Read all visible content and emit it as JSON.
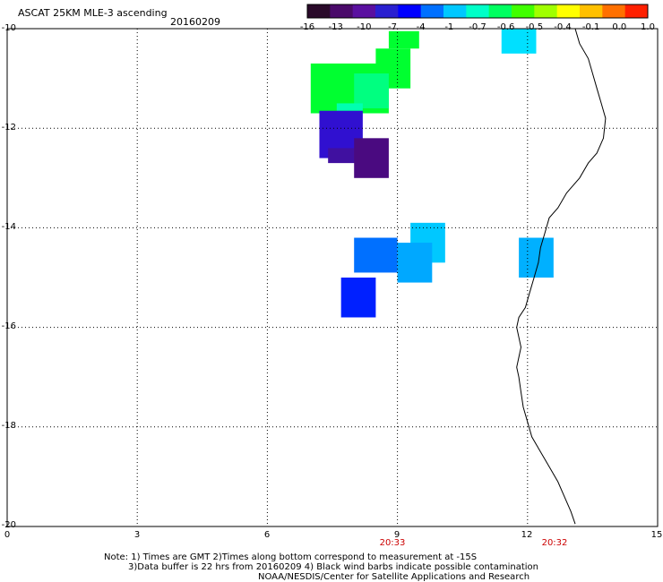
{
  "header": {
    "title": "ASCAT 25KM MLE-3 ascending",
    "date": "20160209"
  },
  "colorbar": {
    "labels": [
      "-16",
      "-13",
      "-10",
      "-7",
      "-4",
      "-1",
      "-0.7",
      "-0.6",
      "-0.5",
      "-0.4",
      "-0.1",
      "0.0",
      "1.0"
    ],
    "colors": [
      "#2a0a2a",
      "#4a0a6a",
      "#5a10a0",
      "#2a20d0",
      "#0000ff",
      "#0070ff",
      "#00c8ff",
      "#00ffc8",
      "#00ff60",
      "#40ff00",
      "#a0ff00",
      "#ffff00",
      "#ffc000",
      "#ff7000",
      "#ff2000"
    ]
  },
  "axes": {
    "y_labels": [
      "-10",
      "-12",
      "-14",
      "-16",
      "-18",
      "-20"
    ],
    "x_labels": [
      "0",
      "3",
      "6",
      "9",
      "12",
      "15"
    ],
    "times": [
      "20:33",
      "20:32"
    ]
  },
  "notes": {
    "line1": "Note: 1) Times are GMT 2)Times along bottom correspond to measurement at -15S",
    "line2": "3)Data buffer is 22 hrs from 20160209 4) Black wind barbs indicate possible contamination",
    "line3": "NOAA/NESDIS/Center for Satellite Applications and Research"
  },
  "map_data": {
    "lon_range": [
      0,
      15
    ],
    "lat_range": [
      -20,
      -10
    ],
    "cells": [
      {
        "lon": [
          8.8,
          9.5
        ],
        "lat": [
          -10.05,
          -10.4
        ],
        "color": "#00ff30"
      },
      {
        "lon": [
          8.5,
          9.3
        ],
        "lat": [
          -10.4,
          -11.2
        ],
        "color": "#00ff30"
      },
      {
        "lon": [
          7.0,
          8.8
        ],
        "lat": [
          -10.7,
          -11.7
        ],
        "color": "#00ff30"
      },
      {
        "lon": [
          8.0,
          8.8
        ],
        "lat": [
          -10.9,
          -11.6
        ],
        "color": "#00ff80"
      },
      {
        "lon": [
          7.6,
          8.2
        ],
        "lat": [
          -11.5,
          -11.65
        ],
        "color": "#00ffb0"
      },
      {
        "lon": [
          7.2,
          8.2
        ],
        "lat": [
          -11.65,
          -12.6
        ],
        "color": "#3010d0"
      },
      {
        "lon": [
          7.4,
          8.2
        ],
        "lat": [
          -12.4,
          -12.7
        ],
        "color": "#4010a0"
      },
      {
        "lon": [
          8.0,
          8.8
        ],
        "lat": [
          -12.2,
          -13.0
        ],
        "color": "#4a0a80"
      },
      {
        "lon": [
          11.4,
          12.2
        ],
        "lat": [
          -10.0,
          -10.5
        ],
        "color": "#00e0ff"
      },
      {
        "lon": [
          9.3,
          10.1
        ],
        "lat": [
          -13.9,
          -14.7
        ],
        "color": "#00c8ff"
      },
      {
        "lon": [
          8.0,
          9.0
        ],
        "lat": [
          -14.2,
          -14.9
        ],
        "color": "#0070ff"
      },
      {
        "lon": [
          9.0,
          9.8
        ],
        "lat": [
          -14.3,
          -15.1
        ],
        "color": "#00a8ff"
      },
      {
        "lon": [
          7.7,
          8.5
        ],
        "lat": [
          -15.0,
          -15.8
        ],
        "color": "#0020ff"
      },
      {
        "lon": [
          11.8,
          12.6
        ],
        "lat": [
          -14.2,
          -15.0
        ],
        "color": "#00b0ff"
      }
    ]
  }
}
